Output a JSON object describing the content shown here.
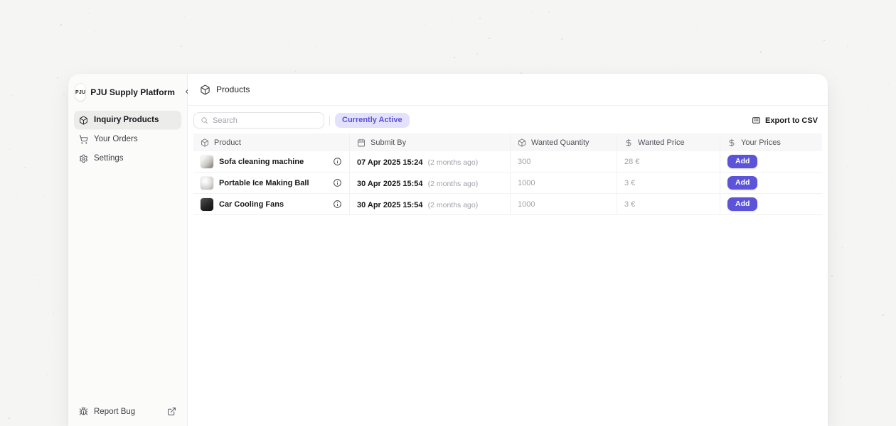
{
  "app": {
    "logo_text": "PJU",
    "title": "PJU Supply Platform",
    "collapse_glyph": "‹"
  },
  "sidebar": {
    "items": [
      {
        "label": "Inquiry Products",
        "icon": "package-icon",
        "active": true
      },
      {
        "label": "Your Orders",
        "icon": "cart-icon",
        "active": false
      },
      {
        "label": "Settings",
        "icon": "gear-icon",
        "active": false
      }
    ],
    "footer": {
      "label": "Report Bug"
    }
  },
  "header": {
    "title": "Products"
  },
  "toolbar": {
    "search_placeholder": "Search",
    "search_value": "",
    "filter_label": "Currently Active",
    "export_label": "Export to CSV"
  },
  "table": {
    "columns": [
      {
        "label": "Product",
        "icon": "package-icon"
      },
      {
        "label": "Submit By",
        "icon": "calendar-icon"
      },
      {
        "label": "Wanted Quantity",
        "icon": "package-icon"
      },
      {
        "label": "Wanted Price",
        "icon": "dollar-icon"
      },
      {
        "label": "Your Prices",
        "icon": "dollar-icon"
      }
    ],
    "rows": [
      {
        "product": "Sofa cleaning machine",
        "submit_date": "07 Apr 2025 15:24",
        "submit_ago": "(2 months ago)",
        "quantity": "300",
        "price": "28 €",
        "action": "Add"
      },
      {
        "product": "Portable Ice Making Ball",
        "submit_date": "30 Apr 2025 15:54",
        "submit_ago": "(2 months ago)",
        "quantity": "1000",
        "price": "3 €",
        "action": "Add"
      },
      {
        "product": "Car Cooling Fans",
        "submit_date": "30 Apr 2025 15:54",
        "submit_ago": "(2 months ago)",
        "quantity": "1000",
        "price": "3 €",
        "action": "Add"
      }
    ]
  },
  "colors": {
    "accent": "#5b53d8",
    "accent_soft_bg": "#e3e1fb",
    "accent_soft_text": "#5a52d5",
    "page_bg": "#f5f5f4",
    "sidebar_bg": "#fbfbfa"
  }
}
